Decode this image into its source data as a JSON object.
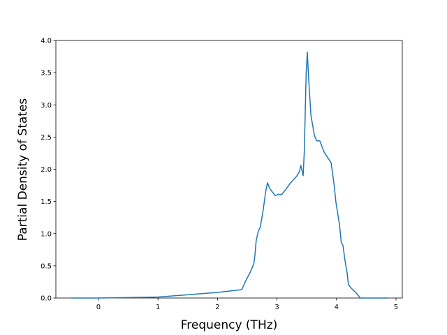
{
  "chart_data": {
    "type": "line",
    "xlabel": "Frequency (THz)",
    "ylabel": "Partial Density of States",
    "color": "#1f77b4",
    "x": [
      -0.46,
      0,
      1,
      2,
      2.41,
      2.46,
      2.55,
      2.61,
      2.63,
      2.65,
      2.69,
      2.72,
      2.77,
      2.81,
      2.84,
      2.88,
      2.92,
      2.97,
      3.02,
      3.08,
      3.16,
      3.23,
      3.33,
      3.38,
      3.4,
      3.44,
      3.46,
      3.49,
      3.51,
      3.53,
      3.57,
      3.63,
      3.67,
      3.72,
      3.79,
      3.86,
      3.91,
      3.96,
      3.99,
      4.05,
      4.08,
      4.11,
      4.14,
      4.18,
      4.2,
      4.25,
      4.33,
      4.4,
      4.86
    ],
    "values": [
      0,
      0,
      0.015,
      0.087,
      0.13,
      0.24,
      0.4,
      0.53,
      0.67,
      0.89,
      1.05,
      1.1,
      1.38,
      1.65,
      1.79,
      1.7,
      1.65,
      1.59,
      1.61,
      1.61,
      1.7,
      1.79,
      1.89,
      1.97,
      2.06,
      1.9,
      2.3,
      3.49,
      3.82,
      3.44,
      2.84,
      2.52,
      2.44,
      2.44,
      2.27,
      2.17,
      2.1,
      1.76,
      1.49,
      1.14,
      0.87,
      0.81,
      0.6,
      0.38,
      0.21,
      0.15,
      0.08,
      0,
      0
    ],
    "xlim": [
      -0.716,
      5.106
    ],
    "xticks": [
      0,
      1,
      2,
      3,
      4,
      5
    ],
    "ylim": [
      0,
      4.0
    ],
    "yticks": [
      {
        "value": 0,
        "label": "0.0"
      },
      {
        "value": 0.5,
        "label": "0.5"
      },
      {
        "value": 1,
        "label": "1.0"
      },
      {
        "value": 1.5,
        "label": "1.5"
      },
      {
        "value": 2,
        "label": "2.0"
      },
      {
        "value": 2.5,
        "label": "2.5"
      },
      {
        "value": 3,
        "label": "3.0"
      },
      {
        "value": 3.5,
        "label": "3.5"
      },
      {
        "value": 4,
        "label": "4.0"
      }
    ]
  }
}
